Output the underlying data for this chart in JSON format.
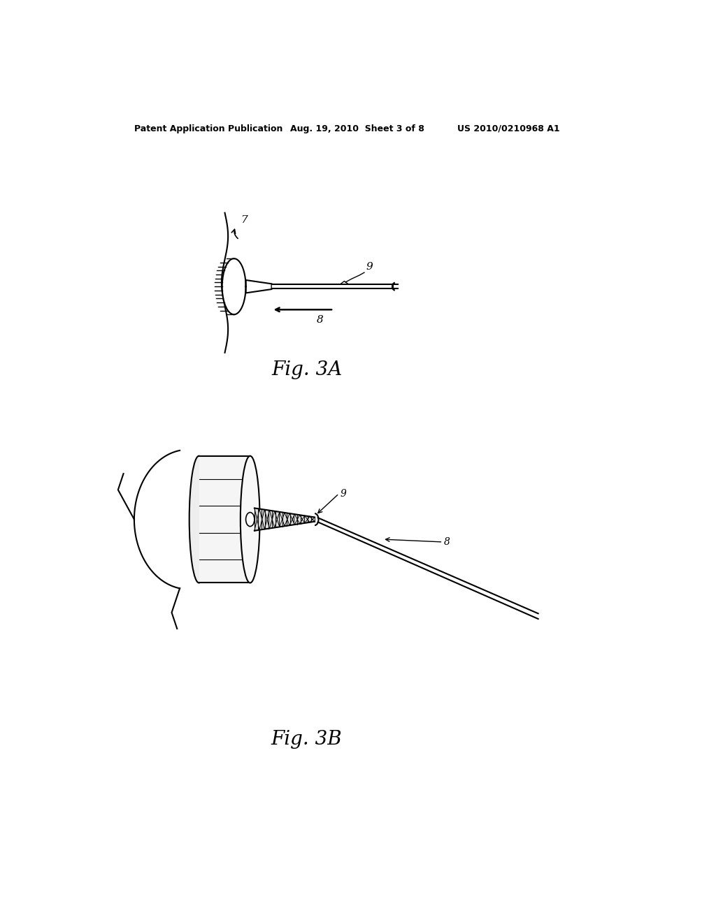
{
  "background_color": "#ffffff",
  "header_left": "Patent Application Publication",
  "header_mid": "Aug. 19, 2010  Sheet 3 of 8",
  "header_right": "US 2010/0210968 A1",
  "fig3a_label": "Fig. 3A",
  "fig3b_label": "Fig. 3B",
  "label_7": "7",
  "label_8": "8",
  "label_9": "9",
  "line_color": "#000000",
  "line_width": 1.5
}
